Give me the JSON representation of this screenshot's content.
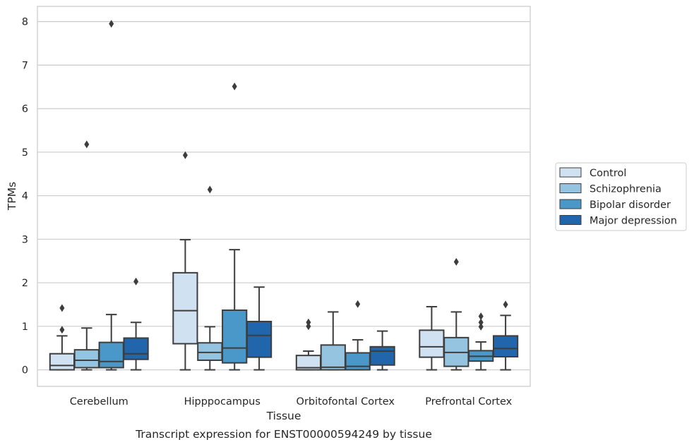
{
  "caption": "Transcript expression for ENST00000594249 by tissue",
  "chart_data": {
    "type": "boxplot",
    "title": "",
    "xlabel": "Tissue",
    "ylabel": "TPMs",
    "ylim": [
      -0.38,
      8.35
    ],
    "yticks": [
      0,
      1,
      2,
      3,
      4,
      5,
      6,
      7,
      8
    ],
    "grid": "horizontal",
    "legend_position": "right",
    "categories": [
      "Cerebellum",
      "Hipppocampus",
      "Orbitofontal Cortex",
      "Prefrontal Cortex"
    ],
    "series": [
      {
        "name": "Control",
        "color": "#d0e1f2",
        "boxes": [
          {
            "whisker_low": 0.0,
            "q1": 0.0,
            "median": 0.1,
            "q3": 0.37,
            "whisker_high": 0.78,
            "outliers": [
              0.92,
              1.42
            ]
          },
          {
            "whisker_low": 0.0,
            "q1": 0.6,
            "median": 1.36,
            "q3": 2.23,
            "whisker_high": 2.99,
            "outliers": [
              4.93
            ]
          },
          {
            "whisker_low": 0.0,
            "q1": 0.0,
            "median": 0.05,
            "q3": 0.33,
            "whisker_high": 0.43,
            "outliers": [
              1.0,
              1.09
            ]
          },
          {
            "whisker_low": 0.0,
            "q1": 0.29,
            "median": 0.53,
            "q3": 0.91,
            "whisker_high": 1.45,
            "outliers": []
          }
        ]
      },
      {
        "name": "Schizophrenia",
        "color": "#94c4df",
        "boxes": [
          {
            "whisker_low": 0.0,
            "q1": 0.05,
            "median": 0.22,
            "q3": 0.46,
            "whisker_high": 0.96,
            "outliers": [
              5.18
            ]
          },
          {
            "whisker_low": 0.0,
            "q1": 0.22,
            "median": 0.4,
            "q3": 0.62,
            "whisker_high": 0.99,
            "outliers": [
              4.14
            ]
          },
          {
            "whisker_low": 0.0,
            "q1": 0.0,
            "median": 0.06,
            "q3": 0.57,
            "whisker_high": 1.33,
            "outliers": []
          },
          {
            "whisker_low": 0.0,
            "q1": 0.08,
            "median": 0.4,
            "q3": 0.74,
            "whisker_high": 1.33,
            "outliers": [
              2.48
            ]
          }
        ]
      },
      {
        "name": "Bipolar disorder",
        "color": "#4a98c9",
        "boxes": [
          {
            "whisker_low": 0.0,
            "q1": 0.05,
            "median": 0.19,
            "q3": 0.63,
            "whisker_high": 1.27,
            "outliers": [
              7.95
            ]
          },
          {
            "whisker_low": 0.0,
            "q1": 0.16,
            "median": 0.5,
            "q3": 1.37,
            "whisker_high": 2.76,
            "outliers": [
              6.51
            ]
          },
          {
            "whisker_low": 0.0,
            "q1": 0.0,
            "median": 0.08,
            "q3": 0.39,
            "whisker_high": 0.69,
            "outliers": [
              1.51
            ]
          },
          {
            "whisker_low": 0.0,
            "q1": 0.2,
            "median": 0.31,
            "q3": 0.44,
            "whisker_high": 0.64,
            "outliers": [
              0.99,
              1.09,
              1.23
            ]
          }
        ]
      },
      {
        "name": "Major depression",
        "color": "#2166ac",
        "boxes": [
          {
            "whisker_low": 0.0,
            "q1": 0.24,
            "median": 0.37,
            "q3": 0.73,
            "whisker_high": 1.09,
            "outliers": [
              2.03
            ]
          },
          {
            "whisker_low": 0.0,
            "q1": 0.29,
            "median": 0.79,
            "q3": 1.11,
            "whisker_high": 1.9,
            "outliers": []
          },
          {
            "whisker_low": 0.0,
            "q1": 0.11,
            "median": 0.43,
            "q3": 0.53,
            "whisker_high": 0.89,
            "outliers": []
          },
          {
            "whisker_low": 0.0,
            "q1": 0.3,
            "median": 0.49,
            "q3": 0.78,
            "whisker_high": 1.25,
            "outliers": [
              1.5
            ]
          }
        ]
      }
    ]
  }
}
